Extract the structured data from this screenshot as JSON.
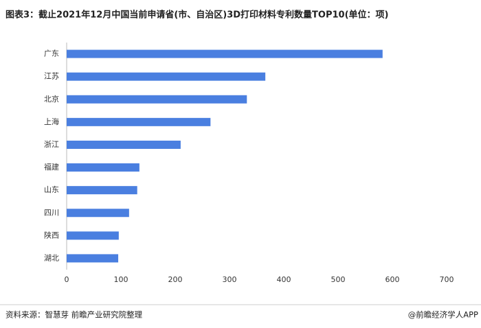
{
  "chart_data": {
    "type": "bar",
    "orientation": "horizontal",
    "title": "图表3：截止2021年12月中国当前申请省(市、自治区)3D打印材料专利数量TOP10(单位：项)",
    "categories": [
      "广东",
      "江苏",
      "北京",
      "上海",
      "浙江",
      "福建",
      "山东",
      "四川",
      "陕西",
      "湖北"
    ],
    "values": [
      582,
      366,
      332,
      265,
      210,
      134,
      130,
      115,
      96,
      95
    ],
    "color": "#4a7fe0",
    "xlim": [
      0,
      700
    ],
    "xticks": [
      0,
      100,
      200,
      300,
      400,
      500,
      600,
      700
    ],
    "grid": false
  },
  "footer": {
    "source": "资料来源：智慧芽 前瞻产业研究院整理",
    "brand": "@前瞻经济学人APP"
  }
}
